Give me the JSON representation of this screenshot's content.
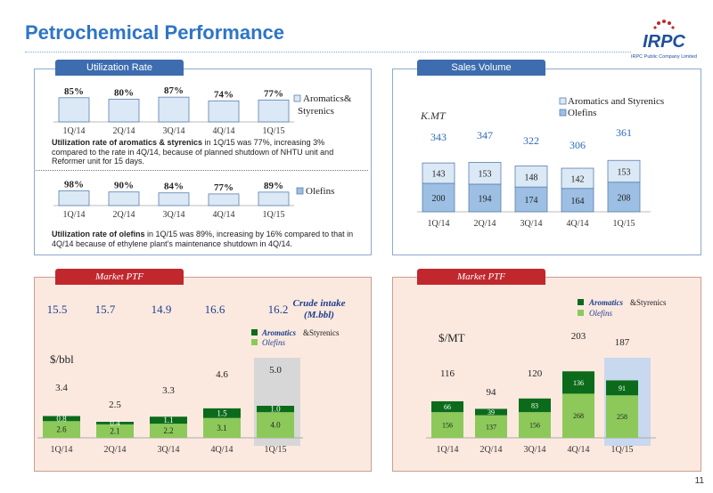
{
  "page": {
    "title": "Petrochemical Performance",
    "page_number": "11",
    "logo_text": "IRPC",
    "logo_subtitle": "IRPC Public Company Limited"
  },
  "utilization": {
    "tab": "Utilization Rate",
    "aromatics_legend": "Aromatics& Styrenics",
    "olefins_legend": "Olefins",
    "note1_bold": "Utilization rate of aromatics & styrenics",
    "note1_text": " in 1Q/15 was  77%, increasing 3% compared to the rate in 4Q/14, because of planned shutdown of NHTU unit and Reformer unit for 15 days.",
    "note2_bold": "Utilization rate of olefins",
    "note2_text": " in 1Q/15 was 89%, increasing by  16% compared to that in 4Q/14 because of ethylene plant’s maintenance shutdown in 4Q/14."
  },
  "sales": {
    "tab": "Sales Volume",
    "unit": "K.MT"
  },
  "market_left": {
    "tab": "Market PTF",
    "unit": "$/bbl",
    "crude_label": "Crude intake (M.bbl)",
    "crude_values": [
      "15.5",
      "15.7",
      "14.9",
      "16.6",
      "16.2"
    ],
    "legend_arom": "Aromatics",
    "legend_arom_tail": "&Styrenics",
    "legend_olefins": "Olefins"
  },
  "market_right": {
    "tab": "Market PTF",
    "unit": "$/MT",
    "legend_arom": "Aromatics",
    "legend_arom_tail": "&Styrenics",
    "legend_olefins": "Olefins"
  },
  "colors": {
    "title_blue": "#2e75c6",
    "tab_blue": "#3d6dae",
    "tab_red": "#c0282e",
    "bar_light": "#dbe8f5",
    "bar_blue": "#9cbfe3",
    "green_dark": "#0b6b1a",
    "green_light": "#8cc95a",
    "total_blue": "#2e6ab4"
  },
  "chart_data": [
    {
      "id": "util_arom",
      "type": "bar",
      "categories": [
        "1Q/14",
        "2Q/14",
        "3Q/14",
        "4Q/14",
        "1Q/15"
      ],
      "series": [
        {
          "name": "Aromatics& Styrenics",
          "values": [
            85,
            80,
            87,
            74,
            77
          ]
        }
      ],
      "labels": [
        "85%",
        "80%",
        "87%",
        "74%",
        "77%"
      ]
    },
    {
      "id": "util_olef",
      "type": "bar",
      "categories": [
        "1Q/14",
        "2Q/14",
        "3Q/14",
        "4Q/14",
        "1Q/15"
      ],
      "series": [
        {
          "name": "Olefins",
          "values": [
            98,
            90,
            84,
            77,
            89
          ]
        }
      ],
      "labels": [
        "98%",
        "90%",
        "84%",
        "77%",
        "89%"
      ]
    },
    {
      "id": "sales",
      "type": "bar",
      "categories": [
        "1Q/14",
        "2Q/14",
        "3Q/14",
        "4Q/14",
        "1Q/15"
      ],
      "series": [
        {
          "name": "Olefins",
          "values": [
            200,
            194,
            174,
            164,
            208
          ]
        },
        {
          "name": "Aromatics and Styrenics",
          "values": [
            143,
            153,
            148,
            142,
            153
          ]
        }
      ],
      "totals": [
        343,
        347,
        322,
        306,
        361
      ]
    },
    {
      "id": "ptf_bbl",
      "type": "bar",
      "categories": [
        "1Q/14",
        "2Q/14",
        "3Q/14",
        "4Q/14",
        "1Q/15"
      ],
      "series": [
        {
          "name": "Olefins",
          "values": [
            2.6,
            2.1,
            2.2,
            3.1,
            4.0
          ]
        },
        {
          "name": "Aromatics &Styrenics",
          "values": [
            0.8,
            0.4,
            1.1,
            1.5,
            1.0
          ]
        }
      ],
      "totals": [
        3.4,
        2.5,
        3.3,
        4.6,
        5.0
      ],
      "labels_olef": [
        "2.6",
        "2.1",
        "2.2",
        "3.1",
        "4.0"
      ],
      "labels_arom": [
        "0.8",
        "0.4",
        "1.1",
        "1.5",
        "1.0"
      ],
      "labels_total": [
        "3.4",
        "2.5",
        "3.3",
        "4.6",
        "5.0"
      ]
    },
    {
      "id": "ptf_mt",
      "type": "bar",
      "categories": [
        "1Q/14",
        "2Q/14",
        "3Q/14",
        "4Q/14",
        "1Q/15"
      ],
      "series": [
        {
          "name": "Olefins",
          "values": [
            156,
            137,
            156,
            268,
            258
          ]
        },
        {
          "name": "Aromatics &Styrenics",
          "values": [
            66,
            39,
            83,
            136,
            91
          ]
        }
      ],
      "totals": [
        116,
        94,
        120,
        203,
        187
      ]
    }
  ]
}
